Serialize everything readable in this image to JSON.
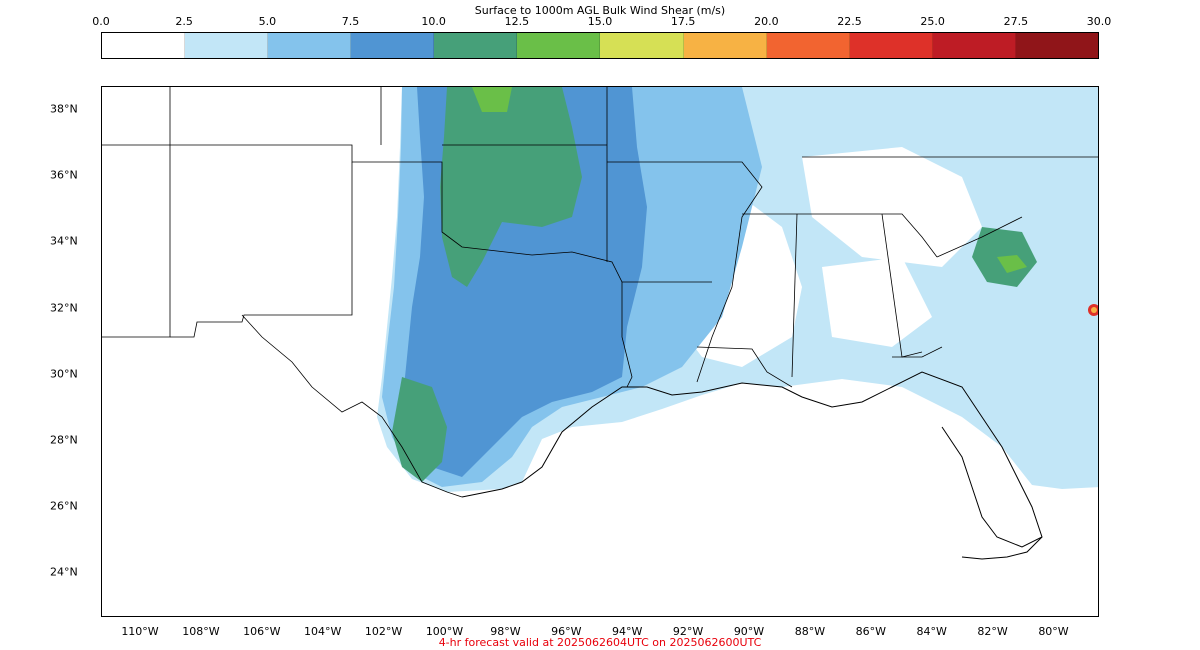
{
  "title": "Surface to 1000m AGL Bulk Wind Shear (m/s)",
  "colorbar": {
    "ticks": [
      "0.0",
      "2.5",
      "5.0",
      "7.5",
      "10.0",
      "12.5",
      "15.0",
      "17.5",
      "20.0",
      "22.5",
      "25.0",
      "27.5",
      "30.0"
    ],
    "colors": [
      "#ffffff",
      "#c2e6f7",
      "#84c3ec",
      "#5095d3",
      "#46a079",
      "#6abf48",
      "#d6e055",
      "#f7b244",
      "#f26430",
      "#de3129",
      "#be1c25",
      "#901519"
    ]
  },
  "axes": {
    "lat_labels": [
      "38°N",
      "36°N",
      "34°N",
      "32°N",
      "30°N",
      "28°N",
      "26°N",
      "24°N"
    ],
    "lon_labels": [
      "110°W",
      "108°W",
      "106°W",
      "104°W",
      "102°W",
      "100°W",
      "98°W",
      "96°W",
      "94°W",
      "92°W",
      "90°W",
      "88°W",
      "86°W",
      "84°W",
      "82°W",
      "80°W"
    ]
  },
  "forecast_text": "4-hr forecast valid at 2025062604UTC on 2025062600UTC",
  "forecast_color": "#e8000b"
}
